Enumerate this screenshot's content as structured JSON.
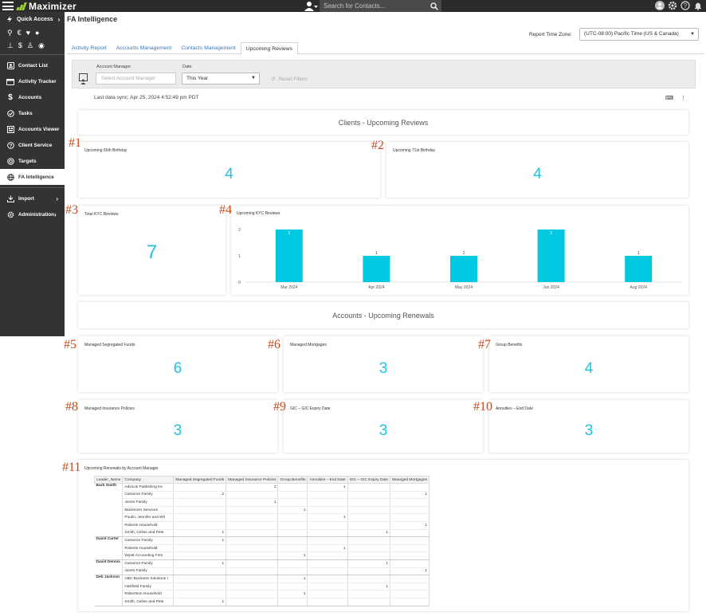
{
  "topbar": {
    "app_name": "Maximizer",
    "search_placeholder": "Search for Contacts..."
  },
  "sidebar": {
    "quick_access": "Quick Access",
    "items": [
      {
        "label": "Contact List",
        "icon": "contact-list-icon"
      },
      {
        "label": "Activity Tracker",
        "icon": "activity-tracker-icon"
      },
      {
        "label": "Accounts",
        "icon": "dollar-icon"
      },
      {
        "label": "Tasks",
        "icon": "check-circle-icon"
      },
      {
        "label": "Accounts Viewer",
        "icon": "accounts-viewer-icon"
      },
      {
        "label": "Client Service",
        "icon": "client-service-icon"
      },
      {
        "label": "Targets",
        "icon": "target-icon"
      },
      {
        "label": "FA Intelligence",
        "icon": "globe-icon",
        "active": true
      }
    ],
    "bottom_items": [
      {
        "label": "Import",
        "icon": "import-icon"
      },
      {
        "label": "Administration",
        "icon": "gear-icon"
      }
    ]
  },
  "page": {
    "title": "FA Intelligence",
    "report_tz_label": "Report Time Zone:",
    "report_tz_value": "(UTC-08:00) Pacific Time (US & Canada)",
    "tabs": [
      "Activity Report",
      "Accounts Management",
      "Contacts Management",
      "Upcoming Reviews"
    ],
    "active_tab": "Upcoming Reviews"
  },
  "filters": {
    "account_manager_label": "Account Manager",
    "account_manager_placeholder": "Select Account Manager",
    "date_label": "Date",
    "date_value": "This Year",
    "reset_label": "Reset Filters"
  },
  "sync_text": "Last data sync: Apr 25, 2024 4:52:49 pm PDT",
  "sections": {
    "clients": "Clients - Upcoming Reviews",
    "accounts": "Accounts - Upcoming Renewals"
  },
  "callouts": [
    "#1",
    "#2",
    "#3",
    "#4",
    "#5",
    "#6",
    "#7",
    "#8",
    "#9",
    "#10",
    "#11"
  ],
  "kpis": {
    "birthday65": {
      "title": "Upcoming 65th Birthday",
      "value": "4"
    },
    "birthday71": {
      "title": "Upcoming 71st Birthday",
      "value": "4"
    },
    "total_kyc": {
      "title": "Total KYC Reviews",
      "value": "7"
    },
    "seg_funds": {
      "title": "Managed Segregated Funds",
      "value": "6"
    },
    "mortgages": {
      "title": "Managed Mortgages",
      "value": "3"
    },
    "group_benefits": {
      "title": "Group Benefits",
      "value": "4"
    },
    "insurance": {
      "title": "Managed Insurance Policies",
      "value": "3"
    },
    "gic": {
      "title": "GIC – GIC Expiry Date",
      "value": "3"
    },
    "annuities": {
      "title": "Annuities – End Date",
      "value": "3"
    }
  },
  "chart_data": {
    "type": "bar",
    "title": "Upcoming KYC Reviews",
    "categories": [
      "Mar 2024",
      "Apr 2024",
      "May 2024",
      "Jun 2024",
      "Aug 2024"
    ],
    "values": [
      2,
      1,
      1,
      2,
      1
    ],
    "yticks": [
      "0",
      "1",
      "2"
    ],
    "ylim": [
      0,
      2
    ],
    "bar_color": "#00c8e0"
  },
  "renewals_table": {
    "title": "Upcoming Renewals by Account Manager",
    "columns": [
      "Leader_Name",
      "Company",
      "Managed Segregated Funds",
      "Managed Insurance Policies",
      "Group Benefits",
      "Annuities – End Date",
      "GIC – GIC Expiry Date",
      "Managed Mortgages"
    ],
    "groups": [
      {
        "manager": "Barb Smith",
        "rows": [
          [
            "Advocis Publishing Inc",
            "",
            "2",
            "",
            "1",
            "",
            ""
          ],
          [
            "Cameron Family",
            "2",
            "",
            "",
            "",
            "",
            "1"
          ],
          [
            "Jones Family",
            "",
            "1",
            "",
            "",
            "",
            ""
          ],
          [
            "Maximizer Services",
            "",
            "",
            "1",
            "",
            "",
            ""
          ],
          [
            "Poulin, Jennifer and Wil",
            "",
            "",
            "",
            "1",
            "",
            ""
          ],
          [
            "Roberts Household",
            "",
            "",
            "",
            "",
            "",
            "1"
          ],
          [
            "Smith, Celine and Pete",
            "1",
            "",
            "",
            "",
            "1",
            ""
          ]
        ]
      },
      {
        "manager": "David Carter",
        "rows": [
          [
            "Cameron Family",
            "1",
            "",
            "",
            "",
            "",
            ""
          ],
          [
            "Roberts Household",
            "",
            "",
            "",
            "1",
            "",
            ""
          ],
          [
            "Wyatt Accounting Firm",
            "",
            "",
            "1",
            "",
            "",
            ""
          ]
        ]
      },
      {
        "manager": "David Dennis",
        "rows": [
          [
            "Cameron Family",
            "1",
            "",
            "",
            "",
            "1",
            ""
          ],
          [
            "Jones Family",
            "",
            "",
            "",
            "",
            "",
            "1"
          ]
        ]
      },
      {
        "manager": "Deb Jackson",
        "rows": [
          [
            "ABC Business Solutions I",
            "",
            "",
            "1",
            "",
            "",
            ""
          ],
          [
            "Hartfield Family",
            "",
            "",
            "",
            "",
            "1",
            ""
          ],
          [
            "Robertson Household",
            "",
            "",
            "1",
            "",
            "",
            ""
          ],
          [
            "Smith, Celine and Pete",
            "1",
            "",
            "",
            "",
            "",
            ""
          ]
        ]
      }
    ]
  }
}
